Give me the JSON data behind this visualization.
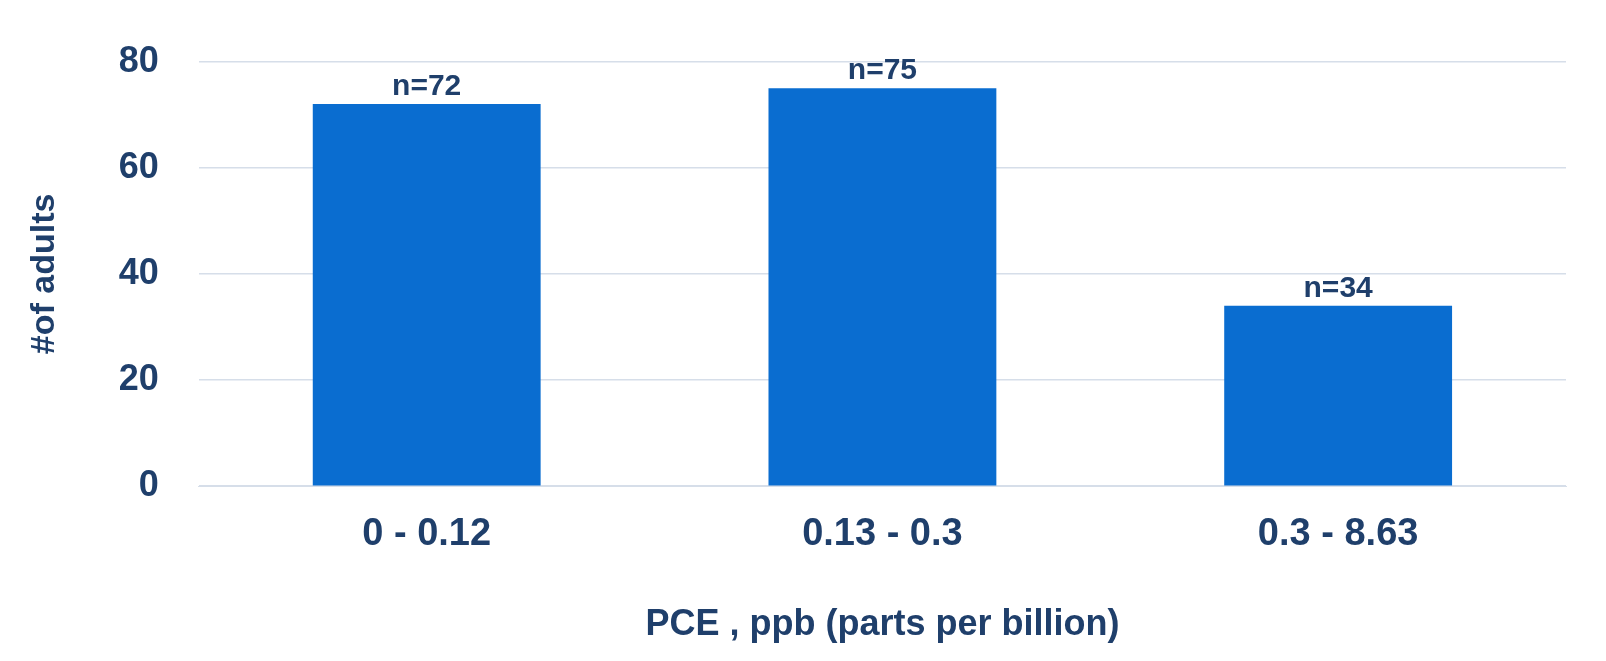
{
  "chart_data": {
    "type": "bar",
    "xlabel": "PCE , ppb (parts per billion)",
    "ylabel": "#of adults",
    "categories": [
      "0 - 0.12",
      "0.13 - 0.3",
      "0.3 - 8.63"
    ],
    "values": [
      72,
      75,
      34
    ],
    "color": "#0a6dd0",
    "value_labels": [
      "n=72",
      "n=75",
      "n=34"
    ],
    "ylim": [
      0,
      80
    ],
    "yticks": [
      0,
      20,
      40,
      60,
      80
    ],
    "grid": "y",
    "legend": false
  }
}
